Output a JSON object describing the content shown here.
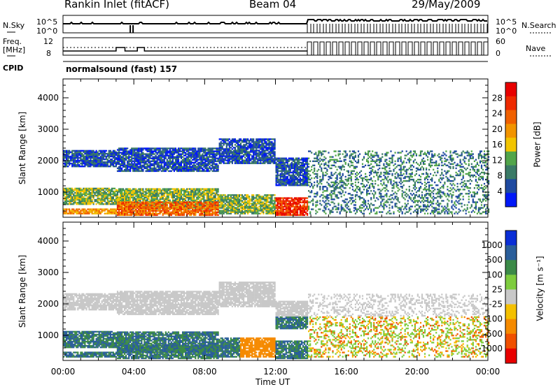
{
  "header": {
    "station": "Rankin Inlet (fitACF)",
    "beam": "Beam 04",
    "date": "29/May/2009"
  },
  "params": {
    "nsky_label": "N.Sky",
    "nsky_ticks": [
      "10^5",
      "10^0"
    ],
    "nsearch_label": "N.Search",
    "nsearch_ticks": [
      "10^5",
      "10^0"
    ],
    "freq_label_1": "Freq.",
    "freq_label_2": "[MHz]",
    "freq_ticks": [
      "12",
      "8"
    ],
    "nave_label": "Nave",
    "nave_ticks": [
      "60",
      "0"
    ],
    "cpid_label": "CPID",
    "cpid_value": "normalsound (fast) 157"
  },
  "colors": {
    "power": [
      "#0018f8",
      "#1f4aa0",
      "#3a7a66",
      "#52a54a",
      "#f2c400",
      "#f29400",
      "#f06000",
      "#ee2a00",
      "#e80000"
    ],
    "velocity": [
      "#e80000",
      "#f05000",
      "#f58a00",
      "#f4c000",
      "#c8c8c8",
      "#7ecc3e",
      "#3c8a48",
      "#2a5e9a",
      "#0a2ed6"
    ]
  },
  "chart_data": [
    {
      "type": "heatmap",
      "panel": "power",
      "ylabel": "Slant Range [km]",
      "yticks": [
        "1000",
        "2000",
        "3000",
        "4000"
      ],
      "ylim": [
        200,
        4600
      ],
      "xlim": [
        0,
        24
      ],
      "colorbar_label": "Power [dB]",
      "colorbar_ticks": [
        "4",
        "8",
        "12",
        "16",
        "20",
        "24",
        "28"
      ],
      "color_range": [
        0,
        30
      ]
    },
    {
      "type": "heatmap",
      "panel": "velocity",
      "ylabel": "Slant Range [km]",
      "yticks": [
        "1000",
        "2000",
        "3000",
        "4000"
      ],
      "ylim": [
        200,
        4600
      ],
      "xlim": [
        0,
        24
      ],
      "colorbar_label": "Velocity [m s⁻¹]",
      "colorbar_ticks": [
        "1000",
        "500",
        "100",
        "25",
        "-25",
        "-100",
        "-500",
        "-1000"
      ]
    }
  ],
  "time_axis": {
    "ticks": [
      "00:00",
      "04:00",
      "08:00",
      "12:00",
      "16:00",
      "20:00",
      "00:00"
    ],
    "label": "Time UT"
  }
}
